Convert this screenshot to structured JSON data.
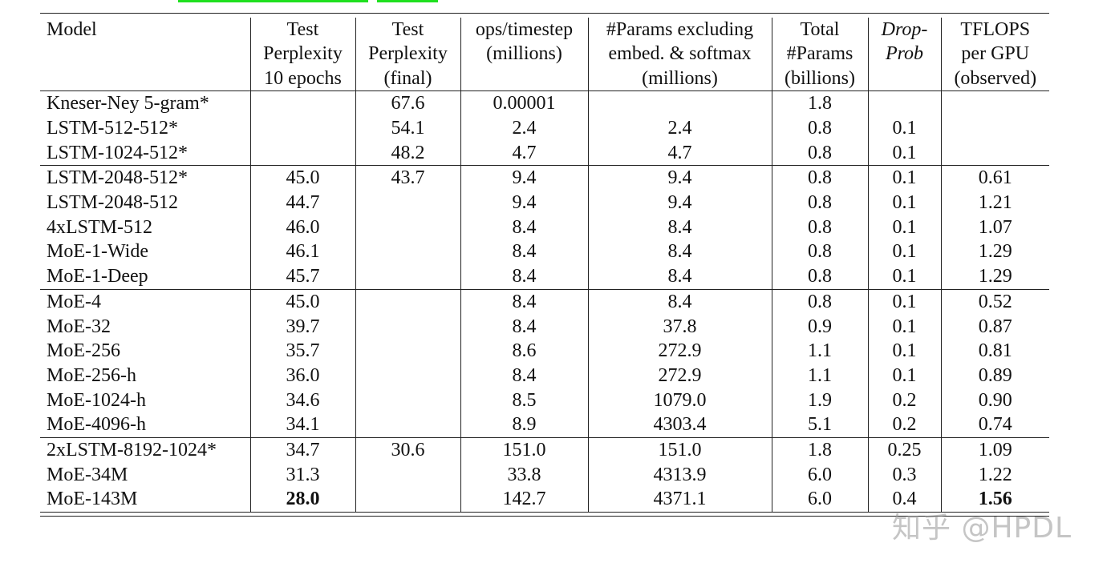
{
  "headers": [
    [
      "Model"
    ],
    [
      "Test",
      "Perplexity",
      "10 epochs"
    ],
    [
      "Test",
      "Perplexity",
      "(final)"
    ],
    [
      "ops/timestep",
      "(millions)"
    ],
    [
      "#Params excluding",
      "embed. & softmax",
      "(millions)"
    ],
    [
      "Total",
      "#Params",
      "(billions)"
    ],
    [
      "Drop-",
      "Prob"
    ],
    [
      "TFLOPS",
      "per GPU",
      "(observed)"
    ]
  ],
  "groups": [
    [
      [
        "Kneser-Ney 5-gram*",
        "",
        "67.6",
        "0.00001",
        "",
        "1.8",
        "",
        ""
      ],
      [
        "LSTM-512-512*",
        "",
        "54.1",
        "2.4",
        "2.4",
        "0.8",
        "0.1",
        ""
      ],
      [
        "LSTM-1024-512*",
        "",
        "48.2",
        "4.7",
        "4.7",
        "0.8",
        "0.1",
        ""
      ]
    ],
    [
      [
        "LSTM-2048-512*",
        "45.0",
        "43.7",
        "9.4",
        "9.4",
        "0.8",
        "0.1",
        "0.61"
      ],
      [
        "LSTM-2048-512",
        "44.7",
        "",
        "9.4",
        "9.4",
        "0.8",
        "0.1",
        "1.21"
      ],
      [
        "4xLSTM-512",
        "46.0",
        "",
        "8.4",
        "8.4",
        "0.8",
        "0.1",
        "1.07"
      ],
      [
        "MoE-1-Wide",
        "46.1",
        "",
        "8.4",
        "8.4",
        "0.8",
        "0.1",
        "1.29"
      ],
      [
        "MoE-1-Deep",
        "45.7",
        "",
        "8.4",
        "8.4",
        "0.8",
        "0.1",
        "1.29"
      ]
    ],
    [
      [
        "MoE-4",
        "45.0",
        "",
        "8.4",
        "8.4",
        "0.8",
        "0.1",
        "0.52"
      ],
      [
        "MoE-32",
        "39.7",
        "",
        "8.4",
        "37.8",
        "0.9",
        "0.1",
        "0.87"
      ],
      [
        "MoE-256",
        "35.7",
        "",
        "8.6",
        "272.9",
        "1.1",
        "0.1",
        "0.81"
      ],
      [
        "MoE-256-h",
        "36.0",
        "",
        "8.4",
        "272.9",
        "1.1",
        "0.1",
        "0.89"
      ],
      [
        "MoE-1024-h",
        "34.6",
        "",
        "8.5",
        "1079.0",
        "1.9",
        "0.2",
        "0.90"
      ],
      [
        "MoE-4096-h",
        "34.1",
        "",
        "8.9",
        "4303.4",
        "5.1",
        "0.2",
        "0.74"
      ]
    ],
    [
      [
        "2xLSTM-8192-1024*",
        "34.7",
        "30.6",
        "151.0",
        "151.0",
        "1.8",
        "0.25",
        "1.09"
      ],
      [
        "MoE-34M",
        "31.3",
        "",
        "33.8",
        "4313.9",
        "6.0",
        "0.3",
        "1.22"
      ],
      [
        "MoE-143M",
        "28.0",
        "",
        "142.7",
        "4371.1",
        "6.0",
        "0.4",
        "1.56"
      ]
    ]
  ],
  "bold_cells": [
    [
      3,
      2,
      1
    ],
    [
      3,
      2,
      7
    ]
  ],
  "watermark": "知乎 @HPDL"
}
